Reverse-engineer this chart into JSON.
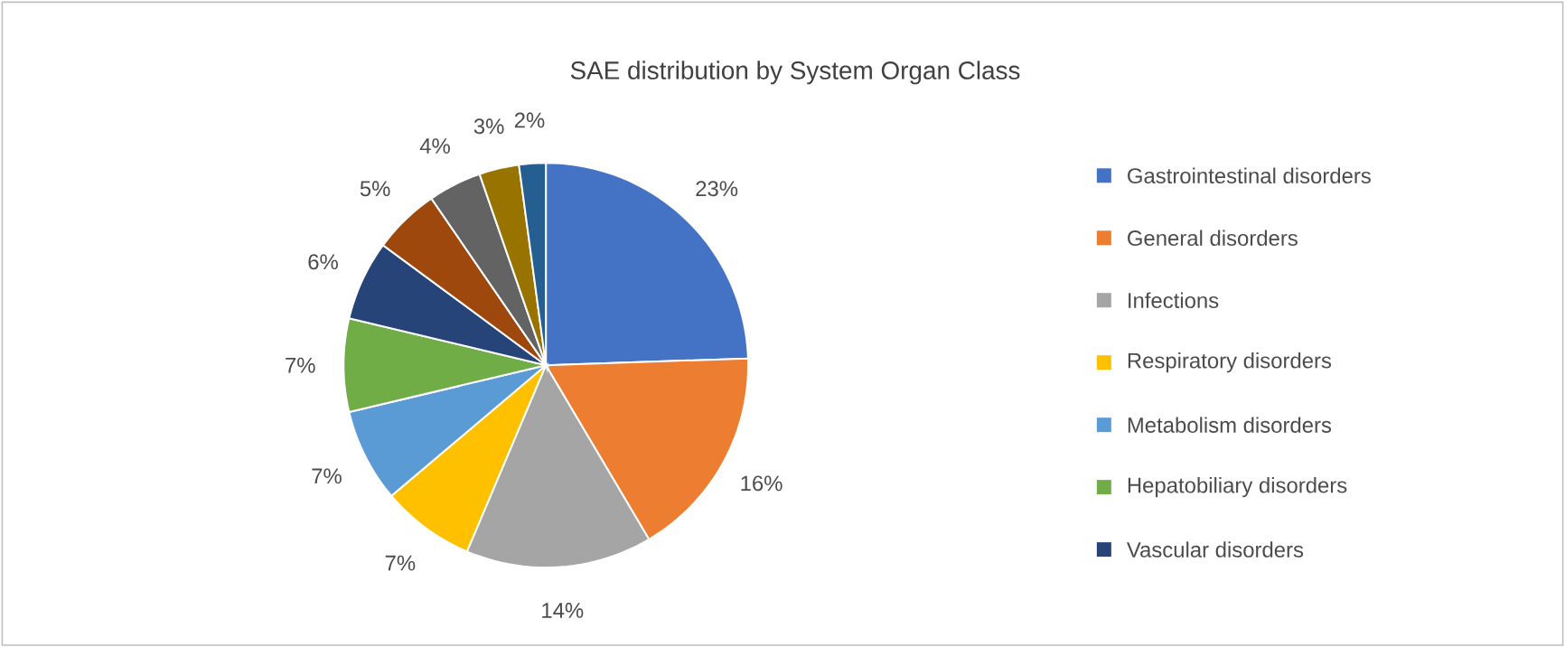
{
  "chart_data": {
    "type": "pie",
    "title": "SAE distribution by System Organ Class",
    "categories": [
      "Gastrointestinal disorders",
      "General disorders",
      "Infections",
      "Respiratory disorders",
      "Metabolism disorders",
      "Hepatobiliary disorders",
      "Vascular disorders",
      null,
      null,
      null,
      null
    ],
    "values": [
      23,
      16,
      14,
      7,
      7,
      7,
      6,
      5,
      4,
      3,
      2
    ],
    "value_labels": [
      "23%",
      "16%",
      "14%",
      "7%",
      "7%",
      "7%",
      "6%",
      "5%",
      "4%",
      "3%",
      "2%"
    ],
    "colors": [
      "#4472c4",
      "#ed7d31",
      "#a5a5a5",
      "#ffc000",
      "#5b9bd5",
      "#70ad47",
      "#264478",
      "#9e480e",
      "#636363",
      "#997300",
      "#255e91"
    ],
    "legend": "right"
  }
}
